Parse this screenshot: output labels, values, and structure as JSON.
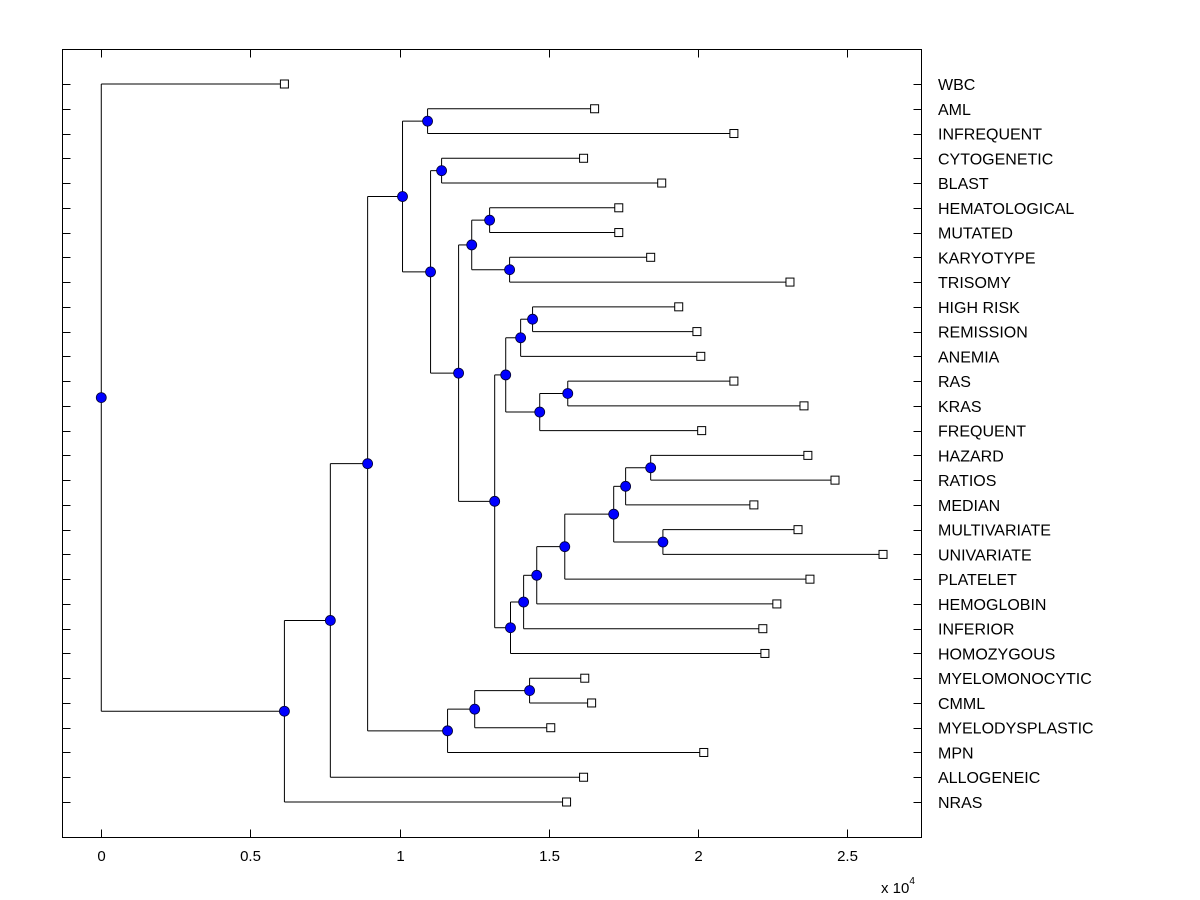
{
  "chart_data": {
    "type": "dendrogram",
    "title": "",
    "xlabel": "",
    "ylabel": "",
    "x_multiplier_label": {
      "base": "x 10",
      "exponent": "4"
    },
    "xlim": [
      -0.13,
      2.75
    ],
    "xticks": [
      0,
      0.5,
      1,
      1.5,
      2,
      2.5
    ],
    "xtick_labels": [
      "0",
      "0.5",
      "1",
      "1.5",
      "2",
      "2.5"
    ],
    "grid": false,
    "leaves": [
      {
        "label": "WBC",
        "x": 0.614
      },
      {
        "label": "AML",
        "x": 1.654
      },
      {
        "label": "INFREQUENT",
        "x": 2.121
      },
      {
        "label": "CYTOGENETIC",
        "x": 1.617
      },
      {
        "label": "BLAST",
        "x": 1.879
      },
      {
        "label": "HEMATOLOGICAL",
        "x": 1.735
      },
      {
        "label": "MUTATED",
        "x": 1.735
      },
      {
        "label": "KARYOTYPE",
        "x": 1.842
      },
      {
        "label": "TRISOMY",
        "x": 2.309
      },
      {
        "label": "HIGH RISK",
        "x": 1.936
      },
      {
        "label": "REMISSION",
        "x": 1.997
      },
      {
        "label": "ANEMIA",
        "x": 2.01
      },
      {
        "label": "RAS",
        "x": 2.121
      },
      {
        "label": "KRAS",
        "x": 2.356
      },
      {
        "label": "FREQUENT",
        "x": 2.013
      },
      {
        "label": "HAZARD",
        "x": 2.369
      },
      {
        "label": "RATIOS",
        "x": 2.46
      },
      {
        "label": "MEDIAN",
        "x": 2.188
      },
      {
        "label": "MULTIVARIATE",
        "x": 2.336
      },
      {
        "label": "UNIVARIATE",
        "x": 2.621
      },
      {
        "label": "PLATELET",
        "x": 2.376
      },
      {
        "label": "HEMOGLOBIN",
        "x": 2.265
      },
      {
        "label": "INFERIOR",
        "x": 2.218
      },
      {
        "label": "HOMOZYGOUS",
        "x": 2.225
      },
      {
        "label": "MYELOMONOCYTIC",
        "x": 1.621
      },
      {
        "label": "CMML",
        "x": 1.644
      },
      {
        "label": "MYELODYSPLASTIC",
        "x": 1.507
      },
      {
        "label": "MPN",
        "x": 2.02
      },
      {
        "label": "ALLOGENEIC",
        "x": 1.617
      },
      {
        "label": "NRAS",
        "x": 1.56
      }
    ],
    "nodes": [
      {
        "id": "n0",
        "x": 0.0,
        "children": [
          "L0",
          "n1"
        ]
      },
      {
        "id": "n1",
        "x": 0.614,
        "children": [
          "n2",
          "L29"
        ]
      },
      {
        "id": "n2",
        "x": 0.768,
        "children": [
          "n3",
          "L28"
        ]
      },
      {
        "id": "n3",
        "x": 0.893,
        "children": [
          "n4",
          "n22"
        ]
      },
      {
        "id": "n4",
        "x": 1.01,
        "children": [
          "n5",
          "n6"
        ]
      },
      {
        "id": "n5",
        "x": 1.094,
        "children": [
          "L1",
          "L2"
        ]
      },
      {
        "id": "n6",
        "x": 1.104,
        "children": [
          "n7",
          "n8"
        ]
      },
      {
        "id": "n7",
        "x": 1.141,
        "children": [
          "L3",
          "L4"
        ]
      },
      {
        "id": "n8",
        "x": 1.198,
        "children": [
          "n9",
          "n12"
        ]
      },
      {
        "id": "n9",
        "x": 1.242,
        "children": [
          "n10",
          "n11"
        ]
      },
      {
        "id": "n10",
        "x": 1.302,
        "children": [
          "L5",
          "L6"
        ]
      },
      {
        "id": "n11",
        "x": 1.369,
        "children": [
          "L7",
          "L8"
        ]
      },
      {
        "id": "n12",
        "x": 1.319,
        "children": [
          "n13",
          "n16"
        ]
      },
      {
        "id": "n13",
        "x": 1.356,
        "children": [
          "n14",
          "n15"
        ]
      },
      {
        "id": "n14",
        "x": 1.406,
        "children": [
          "n14a",
          "L11"
        ]
      },
      {
        "id": "n14a",
        "x": 1.446,
        "children": [
          "L9",
          "L10"
        ]
      },
      {
        "id": "n15",
        "x": 1.47,
        "children": [
          "n15a",
          "L14"
        ]
      },
      {
        "id": "n15a",
        "x": 1.564,
        "children": [
          "L12",
          "L13"
        ]
      },
      {
        "id": "n16",
        "x": 1.372,
        "children": [
          "n17",
          "L23"
        ]
      },
      {
        "id": "n17",
        "x": 1.416,
        "children": [
          "n18",
          "L22"
        ]
      },
      {
        "id": "n18",
        "x": 1.46,
        "children": [
          "n19",
          "L21"
        ]
      },
      {
        "id": "n19",
        "x": 1.554,
        "children": [
          "n20",
          "L20"
        ]
      },
      {
        "id": "n20",
        "x": 1.718,
        "children": [
          "n21",
          "n21b"
        ]
      },
      {
        "id": "n21",
        "x": 1.758,
        "children": [
          "n21a",
          "L17"
        ]
      },
      {
        "id": "n21a",
        "x": 1.842,
        "children": [
          "L15",
          "L16"
        ]
      },
      {
        "id": "n21b",
        "x": 1.883,
        "children": [
          "L18",
          "L19"
        ]
      },
      {
        "id": "n22",
        "x": 1.161,
        "children": [
          "n23",
          "L27"
        ]
      },
      {
        "id": "n23",
        "x": 1.252,
        "children": [
          "n24",
          "L26"
        ]
      },
      {
        "id": "n24",
        "x": 1.436,
        "children": [
          "L24",
          "L25"
        ]
      }
    ],
    "colors": {
      "node": "#0000ff",
      "line": "#000000",
      "leaf_marker": "#ffffff"
    }
  }
}
